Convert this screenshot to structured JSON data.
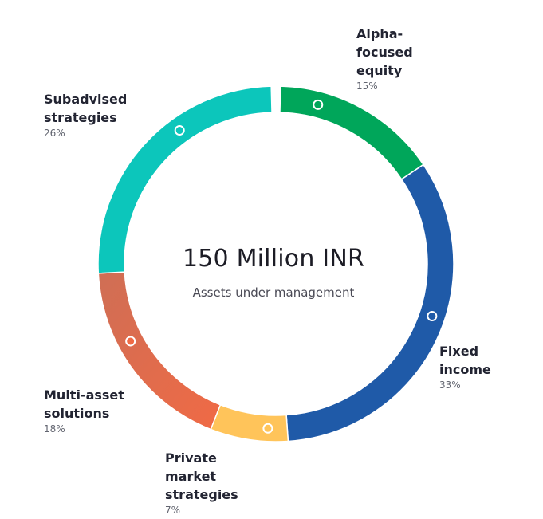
{
  "chart_data": {
    "type": "donut",
    "title": "150 Million INR",
    "subtitle": "Assets under management",
    "series": [
      {
        "name": "Alpha-\nfocused\nequity",
        "label_lines": [
          "Alpha-",
          "focused",
          "equity"
        ],
        "percent": 15,
        "percent_text": "15%",
        "color": "#00a65a"
      },
      {
        "name": "Fixed\nincome",
        "label_lines": [
          "Fixed",
          "income"
        ],
        "percent": 33,
        "percent_text": "33%",
        "color": "#1f5aa8"
      },
      {
        "name": "Private\nmarket\nstrategies",
        "label_lines": [
          "Private",
          "market",
          "strategies"
        ],
        "percent": 7,
        "percent_text": "7%",
        "color": "#ffc45a"
      },
      {
        "name": "Multi-asset\nsolutions",
        "label_lines": [
          "Multi-asset",
          "solutions"
        ],
        "percent": 18,
        "percent_text": "18%",
        "color_start": "#cf6e55",
        "color_end": "#f06a45"
      },
      {
        "name": "Subadvised\nstrategies",
        "label_lines": [
          "Subadvised",
          "strategies"
        ],
        "percent": 26,
        "percent_text": "26%",
        "color": "#0cc6bb"
      }
    ]
  }
}
